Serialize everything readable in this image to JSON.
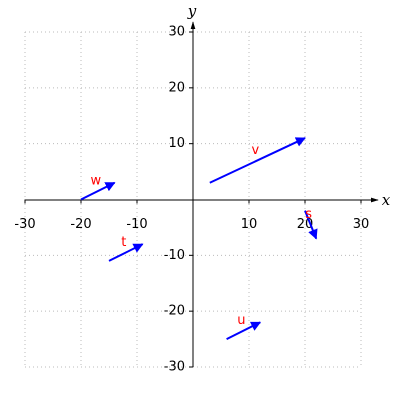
{
  "chart_data": {
    "type": "vector",
    "xlabel": "x",
    "ylabel": "y",
    "xlim": [
      -30,
      30
    ],
    "ylim": [
      -30,
      30
    ],
    "xticks": [
      -30,
      -20,
      -10,
      10,
      20,
      30
    ],
    "yticks": [
      -30,
      -20,
      -10,
      10,
      20,
      30
    ],
    "grid": true,
    "color": "#0000ff",
    "label_color": "#ff0000",
    "vectors": [
      {
        "name": "v",
        "x": 3,
        "y": 3,
        "dx": 17,
        "dy": 8
      },
      {
        "name": "w",
        "x": -20,
        "y": 0,
        "dx": 6,
        "dy": 3
      },
      {
        "name": "t",
        "x": -15,
        "y": -11,
        "dx": 6,
        "dy": 3
      },
      {
        "name": "u",
        "x": 6,
        "y": -25,
        "dx": 6,
        "dy": 3
      },
      {
        "name": "s",
        "x": 20,
        "y": -2,
        "dx": 2,
        "dy": -5
      }
    ]
  }
}
